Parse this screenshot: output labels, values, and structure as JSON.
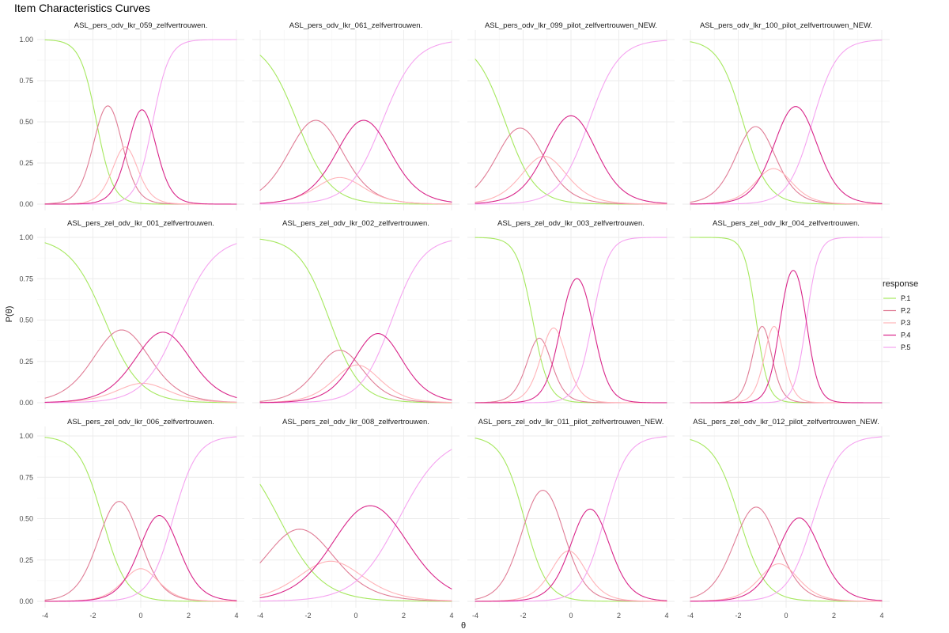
{
  "chart_data": {
    "type": "line",
    "title": "Item Characteristics Curves",
    "xlabel": "θ",
    "ylabel": "P(θ)",
    "xlim": [
      -4,
      4
    ],
    "ylim": [
      0,
      1
    ],
    "x_ticks": [
      -4,
      -2,
      0,
      2,
      4
    ],
    "x_tick_labels": [
      "-4",
      "-2",
      "0",
      "2",
      "4"
    ],
    "y_ticks": [
      0,
      0.25,
      0.5,
      0.75,
      1
    ],
    "y_tick_labels": [
      "0.00",
      "0.25",
      "0.50",
      "0.75",
      "1.00"
    ],
    "grid": true,
    "layout": {
      "rows": 3,
      "cols": 4
    },
    "legend": {
      "title": "response",
      "placement": "right",
      "entries": [
        {
          "name": "P.1",
          "color": "#a6e85f"
        },
        {
          "name": "P.2",
          "color": "#e07d96"
        },
        {
          "name": "P.3",
          "color": "#ffb3b8"
        },
        {
          "name": "P.4",
          "color": "#d9268a"
        },
        {
          "name": "P.5",
          "color": "#f5a3f0"
        }
      ]
    },
    "model": "graded response (2PL): P(k) = P*(k) - P*(k+1)",
    "panels": [
      {
        "title": "ASL_pers_odv_lkr_059_zelfvertrouwen.",
        "a": 2.9,
        "b": [
          -1.85,
          -0.9,
          -0.4,
          0.5
        ]
      },
      {
        "title": "ASL_pers_odv_lkr_061_zelfvertrouwen.",
        "a": 1.45,
        "b": [
          -2.45,
          -0.9,
          -0.45,
          1.1
        ]
      },
      {
        "title": "ASL_pers_odv_lkr_099_pilot_zelfvertrouwen_NEW.",
        "a": 1.6,
        "b": [
          -2.75,
          -1.5,
          -0.75,
          0.75
        ]
      },
      {
        "title": "ASL_pers_odv_lkr_100_pilot_zelfvertrouwen_NEW.",
        "a": 1.95,
        "b": [
          -1.8,
          -0.75,
          -0.3,
          1.1
        ]
      },
      {
        "title": "ASL_pers_zel_odv_lkr_001_zelfvertrouwen.",
        "a": 1.35,
        "b": [
          -1.5,
          -0.1,
          0.25,
          1.6
        ]
      },
      {
        "title": "ASL_pers_zel_odv_lkr_002_zelfvertrouwen.",
        "a": 1.55,
        "b": [
          -1.1,
          -0.25,
          0.35,
          1.5
        ]
      },
      {
        "title": "ASL_pers_zel_odv_lkr_003_zelfvertrouwen.",
        "a": 3.0,
        "b": [
          -1.6,
          -1.05,
          -0.4,
          0.9
        ]
      },
      {
        "title": "ASL_pers_zel_odv_lkr_004_zelfvertrouwen.",
        "a": 4.0,
        "b": [
          -1.25,
          -0.75,
          -0.25,
          0.85
        ]
      },
      {
        "title": "ASL_pers_zel_odv_lkr_006_zelfvertrouwen.",
        "a": 2.0,
        "b": [
          -1.6,
          -0.2,
          0.2,
          1.35
        ]
      },
      {
        "title": "ASL_pers_zel_odv_lkr_008_zelfvertrouwen.",
        "a": 1.1,
        "b": [
          -3.2,
          -1.5,
          -0.6,
          1.8
        ]
      },
      {
        "title": "ASL_pers_zel_odv_lkr_011_pilot_zelfvertrouwen_NEW.",
        "a": 2.1,
        "b": [
          -1.95,
          -0.4,
          0.2,
          1.4
        ]
      },
      {
        "title": "ASL_pers_zel_odv_lkr_012_pilot_zelfvertrouwen_NEW.",
        "a": 1.85,
        "b": [
          -1.95,
          -0.55,
          -0.05,
          1.15
        ]
      }
    ]
  }
}
